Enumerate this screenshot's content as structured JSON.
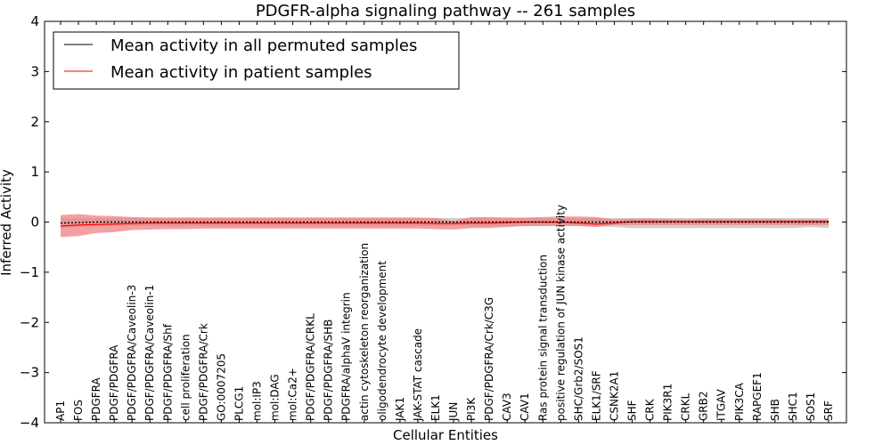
{
  "chart_data": {
    "type": "line",
    "title": "PDGFR-alpha signaling pathway -- 261 samples",
    "xlabel": "Cellular Entities",
    "ylabel": "Inferred Activity",
    "ylim": [
      -4,
      4
    ],
    "yticks": [
      -4,
      -3,
      -2,
      -1,
      0,
      1,
      2,
      3,
      4
    ],
    "grid": false,
    "legend_position": "top-left",
    "categories": [
      "AP1",
      "FOS",
      "PDGFRA",
      "PDGF/PDGFRA",
      "PDGF/PDGFRA/Caveolin-3",
      "PDGF/PDGFRA/Caveolin-1",
      "PDGF/PDGFRA/Shf",
      "cell proliferation",
      "PDGF/PDGFRA/Crk",
      "GO:0007205",
      "PLCG1",
      "mol:IP3",
      "mol:DAG",
      "mol:Ca2+",
      "PDGF/PDGFRA/CRKL",
      "PDGF/PDGFRA/SHB",
      "PDGFRA/alphaV integrin",
      "actin cytoskeleton reorganization",
      "oligodendrocyte development",
      "JAK1",
      "JAK-STAT cascade",
      "ELK1",
      "JUN",
      "PI3K",
      "PDGF/PDGFRA/Crk/C3G",
      "CAV3",
      "CAV1",
      "Ras protein signal transduction",
      "positive regulation of JUN kinase activity",
      "SHC/Grb2/SOS1",
      "ELK1/SRF",
      "CSNK2A1",
      "SHF",
      "CRK",
      "PIK3R1",
      "CRKL",
      "GRB2",
      "ITGAV",
      "PIK3CA",
      "RAPGEF1",
      "SHB",
      "SHC1",
      "SOS1",
      "SRF"
    ],
    "series": [
      {
        "name": "Mean activity in all permuted samples",
        "color": "#000000",
        "style": "dotted",
        "values": [
          -0.02,
          -0.01,
          0,
          0,
          0,
          0,
          0,
          0,
          0,
          0,
          0,
          0,
          0,
          0,
          0,
          0,
          0,
          0,
          0,
          0,
          0,
          0,
          0,
          0,
          0,
          0,
          0,
          0,
          0,
          0,
          0,
          0,
          0,
          0,
          0,
          0,
          0,
          0,
          0,
          0,
          0,
          0,
          0,
          0
        ],
        "band_lower": [
          -0.12,
          -0.1,
          -0.08,
          -0.08,
          -0.08,
          -0.08,
          -0.08,
          -0.08,
          -0.08,
          -0.08,
          -0.08,
          -0.08,
          -0.08,
          -0.08,
          -0.08,
          -0.08,
          -0.08,
          -0.08,
          -0.08,
          -0.08,
          -0.08,
          -0.08,
          -0.08,
          -0.08,
          -0.08,
          -0.08,
          -0.08,
          -0.08,
          -0.08,
          -0.08,
          -0.08,
          -0.1,
          -0.12,
          -0.12,
          -0.12,
          -0.12,
          -0.12,
          -0.12,
          -0.12,
          -0.12,
          -0.12,
          -0.12,
          -0.1,
          -0.12
        ],
        "band_upper": [
          0.08,
          0.08,
          0.08,
          0.08,
          0.08,
          0.08,
          0.08,
          0.08,
          0.08,
          0.08,
          0.08,
          0.08,
          0.08,
          0.08,
          0.08,
          0.08,
          0.08,
          0.08,
          0.08,
          0.08,
          0.08,
          0.08,
          0.08,
          0.08,
          0.08,
          0.08,
          0.08,
          0.08,
          0.08,
          0.08,
          0.08,
          0.08,
          0.08,
          0.08,
          0.08,
          0.08,
          0.08,
          0.08,
          0.08,
          0.08,
          0.08,
          0.08,
          0.08,
          0.08
        ],
        "band_color": "#bbbbbb"
      },
      {
        "name": "Mean activity in patient samples",
        "color": "#ff0000",
        "style": "solid",
        "values": [
          -0.08,
          -0.06,
          -0.05,
          -0.04,
          -0.03,
          -0.02,
          -0.02,
          -0.02,
          -0.02,
          -0.02,
          -0.02,
          -0.02,
          -0.02,
          -0.02,
          -0.02,
          -0.02,
          -0.02,
          -0.02,
          -0.02,
          -0.02,
          -0.02,
          -0.03,
          -0.03,
          -0.02,
          -0.02,
          -0.01,
          0,
          0,
          0,
          -0.02,
          -0.04,
          -0.02,
          0.01,
          0.01,
          0.01,
          0.01,
          0.01,
          0.01,
          0.01,
          0.01,
          0.01,
          0.01,
          0.01,
          0.01
        ],
        "band_lower": [
          -0.3,
          -0.28,
          -0.22,
          -0.2,
          -0.16,
          -0.15,
          -0.14,
          -0.14,
          -0.13,
          -0.13,
          -0.13,
          -0.13,
          -0.13,
          -0.13,
          -0.13,
          -0.13,
          -0.13,
          -0.13,
          -0.13,
          -0.13,
          -0.13,
          -0.14,
          -0.15,
          -0.12,
          -0.12,
          -0.1,
          -0.08,
          -0.08,
          -0.07,
          -0.08,
          -0.1,
          -0.06,
          -0.06,
          -0.06,
          -0.06,
          -0.06,
          -0.06,
          -0.06,
          -0.06,
          -0.06,
          -0.06,
          -0.06,
          -0.06,
          -0.06
        ],
        "band_upper": [
          0.14,
          0.16,
          0.13,
          0.12,
          0.1,
          0.09,
          0.09,
          0.09,
          0.09,
          0.09,
          0.09,
          0.09,
          0.09,
          0.09,
          0.09,
          0.09,
          0.09,
          0.09,
          0.09,
          0.09,
          0.09,
          0.08,
          0.02,
          0.1,
          0.1,
          0.09,
          0.09,
          0.1,
          0.11,
          0.11,
          0.1,
          0.05,
          0.07,
          0.07,
          0.06,
          0.05,
          0.06,
          0.06,
          0.06,
          0.06,
          0.06,
          0.05,
          0.05,
          0.05
        ],
        "band_color": "#f08080"
      }
    ]
  }
}
